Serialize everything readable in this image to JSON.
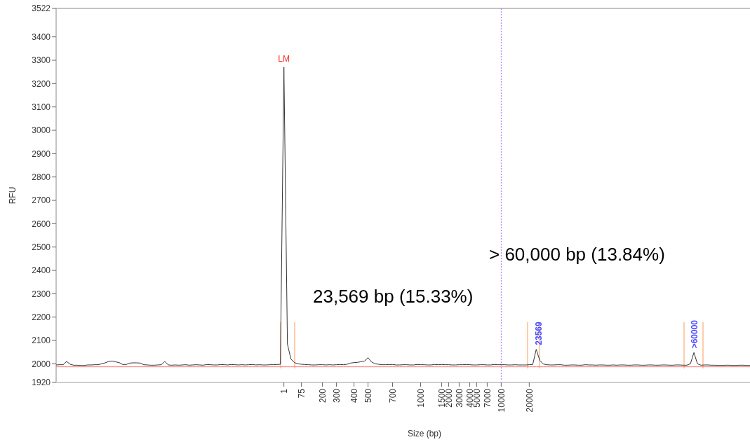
{
  "chart_data": {
    "type": "line",
    "xlabel": "Size (bp)",
    "ylabel": "RFU",
    "categories": [
      null,
      null,
      null,
      null,
      null,
      null,
      null,
      null,
      null,
      null,
      null,
      null,
      null,
      null,
      null,
      null,
      null,
      null,
      null,
      null,
      null,
      null,
      null,
      null,
      null,
      null,
      null,
      null,
      null,
      null,
      null,
      null,
      null,
      null,
      null,
      null,
      null,
      null,
      null,
      null,
      null,
      null,
      null,
      null,
      null,
      null,
      null,
      null,
      null,
      null,
      null,
      null,
      null,
      null,
      null,
      null,
      null,
      null,
      null,
      null,
      null,
      null,
      null,
      null,
      null,
      "1",
      null,
      null,
      null,
      null,
      "75",
      null,
      null,
      null,
      null,
      null,
      "200",
      null,
      null,
      null,
      "300",
      null,
      null,
      null,
      null,
      "400",
      null,
      null,
      null,
      "500",
      null,
      null,
      null,
      null,
      null,
      null,
      "700",
      null,
      null,
      null,
      null,
      null,
      null,
      null,
      "1000",
      null,
      null,
      null,
      null,
      null,
      "1500",
      null,
      "2000",
      null,
      null,
      "3000",
      null,
      null,
      "4000",
      null,
      "5000",
      null,
      null,
      "7000",
      null,
      null,
      null,
      "10000",
      null,
      null,
      null,
      null,
      null,
      null,
      null,
      "20000",
      null,
      null,
      null,
      null,
      null,
      null,
      null,
      null,
      null,
      null,
      null,
      null,
      null,
      null,
      null,
      null,
      null,
      null,
      null,
      null,
      null,
      null,
      null,
      null,
      null,
      null,
      null,
      null,
      null,
      null,
      null,
      null,
      null,
      null,
      null,
      null,
      null,
      null,
      null,
      null,
      null,
      null,
      null,
      null,
      null,
      null,
      null,
      null,
      null,
      null,
      null,
      null,
      null,
      null,
      null,
      null,
      null,
      null,
      null,
      null,
      null,
      null,
      null
    ],
    "ylim": [
      1920,
      3522
    ],
    "yticks": [
      1920,
      2000,
      2100,
      2200,
      2300,
      2400,
      2500,
      2600,
      2700,
      2800,
      2900,
      3000,
      3100,
      3200,
      3300,
      3400,
      3522
    ],
    "series": [
      {
        "color": "#333333",
        "values": [
          1995,
          1996,
          1996,
          2010,
          1998,
          1994,
          1994,
          1993,
          1993,
          1995,
          1995,
          1996,
          1996,
          2000,
          2004,
          2010,
          2012,
          2008,
          2005,
          1997,
          1997,
          2003,
          2004,
          2004,
          2003,
          1996,
          1995,
          1994,
          1994,
          1995,
          1996,
          2010,
          1995,
          1994,
          1995,
          1994,
          1995,
          1996,
          1994,
          1995,
          1996,
          1995,
          1994,
          1997,
          1996,
          1995,
          1995,
          1997,
          1996,
          1995,
          1997,
          1996,
          1995,
          1996,
          1995,
          1996,
          1997,
          1995,
          1996,
          1995,
          1995,
          1996,
          1996,
          1997,
          1998,
          3270,
          2085,
          2020,
          2005,
          2000,
          1998,
          1997,
          1996,
          1995,
          1995,
          1996,
          1996,
          1995,
          1996,
          1995,
          1996,
          1997,
          1996,
          1998,
          2003,
          2005,
          2006,
          2009,
          2012,
          2026,
          2008,
          2000,
          1998,
          1996,
          1996,
          1997,
          1997,
          1995,
          1995,
          1996,
          1996,
          1995,
          1995,
          1997,
          1996,
          1996,
          1995,
          1995,
          1997,
          1996,
          1997,
          1996,
          1996,
          1995,
          1995,
          1996,
          1996,
          1997,
          1996,
          1995,
          1995,
          1996,
          1996,
          1995,
          1995,
          1997,
          1996,
          1996,
          1996,
          1995,
          1995,
          1996,
          1995,
          1995,
          1995,
          1996,
          1997,
          2062,
          2015,
          1999,
          1996,
          1995,
          1995,
          1996,
          1996,
          1994,
          1994,
          1995,
          1995,
          1994,
          1994,
          1996,
          1995,
          1995,
          1994,
          1995,
          1995,
          1994,
          1994,
          1995,
          1994,
          1995,
          1995,
          1994,
          1994,
          1995,
          1995,
          1994,
          1994,
          1995,
          1995,
          1994,
          1994,
          1995,
          1995,
          1994,
          1994,
          1995,
          1995,
          1994,
          1994,
          2000,
          2048,
          2000,
          1994,
          1995,
          1995,
          1994,
          1994,
          1993,
          1993,
          1994,
          1994,
          1993,
          1993,
          1994,
          1994,
          1993,
          1993
        ]
      },
      {
        "color": "#ff7070",
        "values": [
          1987,
          1987,
          1987,
          1987,
          1987,
          1987,
          1987,
          1987,
          1987,
          1987,
          1987,
          1987,
          1987,
          1987,
          1987,
          1987,
          1987,
          1987,
          1987,
          1987,
          1987,
          1987,
          1987,
          1987,
          1987,
          1987,
          1987,
          1987,
          1987,
          1987,
          1987,
          1987,
          1987,
          1987,
          1987,
          1987,
          1987,
          1987,
          1987,
          1987,
          1987,
          1987,
          1987,
          1987,
          1987,
          1987,
          1987,
          1987,
          1987,
          1987,
          1987,
          1987,
          1987,
          1987,
          1987,
          1987,
          1987,
          1987,
          1987,
          1987,
          1987,
          1987,
          1987,
          1987,
          1987,
          1987,
          1987,
          1987,
          1987,
          1987,
          1987,
          1987,
          1987,
          1987,
          1987,
          1987,
          1987,
          1987,
          1987,
          1987,
          1987,
          1987,
          1987,
          1987,
          1987,
          1987,
          1987,
          1987,
          1987,
          1987,
          1987,
          1987,
          1987,
          1987,
          1987,
          1987,
          1987,
          1987,
          1987,
          1987,
          1987,
          1987,
          1987,
          1987,
          1987,
          1987,
          1987,
          1987,
          1987,
          1987,
          1987,
          1987,
          1987,
          1987,
          1987,
          1987,
          1987,
          1987,
          1987,
          1987,
          1987,
          1987,
          1987,
          1987,
          1987,
          1987,
          1987,
          1987,
          1987,
          1987,
          1987,
          1987,
          1987,
          1987,
          1987,
          1987,
          1987,
          1987,
          1987,
          1987,
          1987,
          1987,
          1987,
          1987,
          1987,
          1987,
          1987,
          1987,
          1987,
          1987,
          1987,
          1987,
          1987,
          1987,
          1987,
          1987,
          1987,
          1987,
          1987,
          1987,
          1987,
          1987,
          1987,
          1987,
          1987,
          1987,
          1987,
          1987,
          1987,
          1987,
          1987,
          1987,
          1987,
          1987,
          1987,
          1987,
          1987,
          1987,
          1987,
          1987,
          1987,
          1987,
          1987,
          1987,
          1987,
          1987,
          1987,
          1987,
          1987,
          1987,
          1987,
          1987,
          1987,
          1987,
          1987,
          1987,
          1987,
          1987,
          1987
        ]
      }
    ],
    "ref_lines": [
      {
        "axis": "x",
        "value": "10000",
        "color": "#b36bff",
        "line_style": "dotted"
      }
    ],
    "annotations": [
      {
        "text": "LM",
        "x": "1",
        "y": 3270
      },
      {
        "text": "23569",
        "y": 2062
      },
      {
        "text": ">60000",
        "y": 2048
      },
      "23,569 bp (15.33%)",
      "> 60,000 bp (13.84%)"
    ]
  }
}
